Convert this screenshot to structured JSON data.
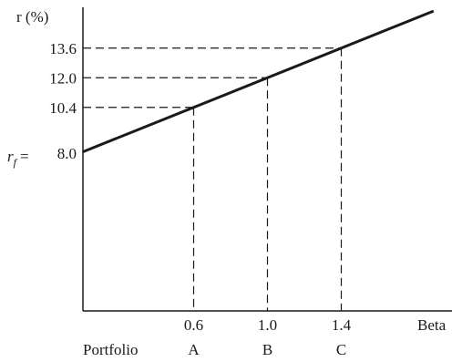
{
  "chart_data": {
    "type": "line",
    "ylabel": "r (%)",
    "xlabel": "Beta",
    "x_category_title": "Portfolio",
    "intercept_label": "8.0",
    "intercept_value": 8.0,
    "rf_label_main": "r",
    "rf_label_sub": "f",
    "rf_label_eq": "=",
    "ylim": [
      0,
      16
    ],
    "xlim": [
      0,
      2.0
    ],
    "line_color": "#1a1a1a",
    "series": [
      {
        "x": [
          0,
          1.9
        ],
        "y": [
          8.0,
          15.6
        ]
      }
    ],
    "y_ticks": [
      {
        "value": 8.0,
        "label": "8.0"
      },
      {
        "value": 10.4,
        "label": "10.4"
      },
      {
        "value": 12.0,
        "label": "12.0"
      },
      {
        "value": 13.6,
        "label": "13.6"
      }
    ],
    "points": [
      {
        "portfolio": "A",
        "beta": 0.6,
        "beta_label": "0.6",
        "r": 10.4
      },
      {
        "portfolio": "B",
        "beta": 1.0,
        "beta_label": "1.0",
        "r": 12.0
      },
      {
        "portfolio": "C",
        "beta": 1.4,
        "beta_label": "1.4",
        "r": 13.6
      }
    ],
    "grid": false,
    "legend": "none"
  }
}
